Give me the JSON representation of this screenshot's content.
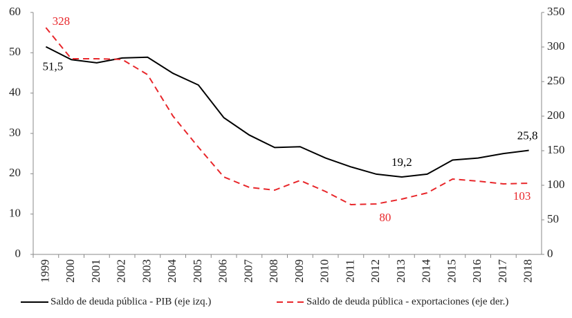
{
  "chart_data": {
    "type": "line",
    "categories": [
      "1999",
      "2000",
      "2001",
      "2002",
      "2003",
      "2004",
      "2005",
      "2006",
      "2007",
      "2008",
      "2009",
      "2010",
      "2011",
      "2012",
      "2013",
      "2014",
      "2015",
      "2016",
      "2017",
      "2018"
    ],
    "series": [
      {
        "name": "Saldo de deuda pública - PIB (eje izq.)",
        "color": "#000000",
        "dash": false,
        "axis": "y",
        "values": [
          51.5,
          48.3,
          47.5,
          48.7,
          48.9,
          44.9,
          42.0,
          33.9,
          29.6,
          26.5,
          26.7,
          23.9,
          21.7,
          19.9,
          19.2,
          19.9,
          23.4,
          23.9,
          25.0,
          25.8
        ],
        "value_labels": [
          "51,5",
          null,
          null,
          null,
          null,
          null,
          null,
          null,
          null,
          null,
          null,
          null,
          null,
          null,
          "19,2",
          null,
          null,
          null,
          null,
          "25,8"
        ]
      },
      {
        "name": "Saldo de deuda pública - exportaciones (eje der.)",
        "color": "#e8262a",
        "dash": true,
        "axis": "y2",
        "values": [
          328,
          283,
          283,
          282,
          260,
          200,
          155,
          112,
          97,
          93,
          107,
          91,
          72,
          73,
          80,
          89,
          109,
          106,
          102,
          103
        ],
        "value_labels": [
          "328",
          null,
          null,
          null,
          null,
          null,
          null,
          null,
          null,
          null,
          null,
          null,
          null,
          null,
          "80",
          null,
          null,
          null,
          null,
          "103"
        ]
      }
    ],
    "ylim": [
      0,
      60
    ],
    "yticks": [
      0,
      10,
      20,
      30,
      40,
      50,
      60
    ],
    "y2lim": [
      0,
      350
    ],
    "y2ticks": [
      0,
      50,
      100,
      150,
      200,
      250,
      300,
      350
    ],
    "legend": "bottom"
  }
}
